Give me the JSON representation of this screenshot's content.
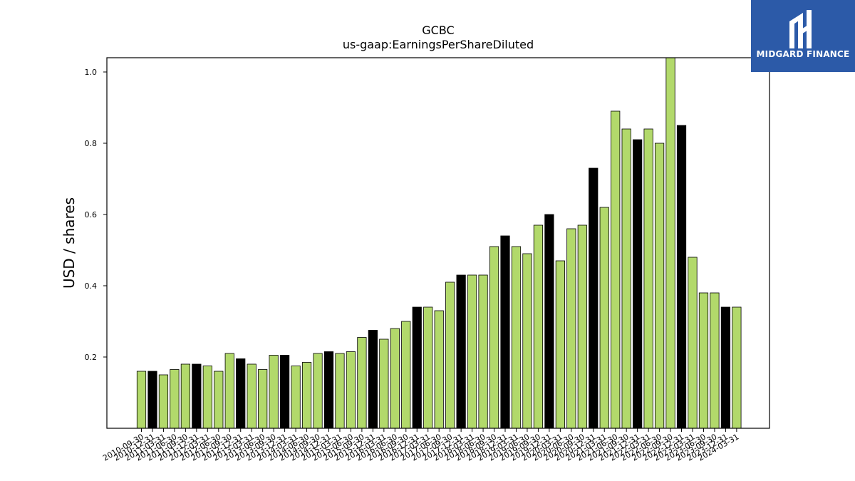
{
  "chart_data": {
    "type": "bar",
    "title": "GCBC",
    "subtitle": "us-gaap:EarningsPerShareDiluted",
    "ylabel": "USD / shares",
    "xlabel": "",
    "ylim": [
      0,
      1.04
    ],
    "yticks": [
      0.2,
      0.4,
      0.6,
      0.8,
      1.0
    ],
    "grid": false,
    "colors": {
      "quarterly": "#b2d96b",
      "annual": "#000000",
      "edge": "#000000"
    },
    "categories": [
      "2010-09-30",
      "2010-12-31",
      "2011-03-31",
      "2011-06-30",
      "2011-09-30",
      "2011-12-31",
      "2012-03-31",
      "2012-06-30",
      "2012-09-30",
      "2012-12-31",
      "2013-03-31",
      "2013-06-30",
      "2013-09-30",
      "2013-12-31",
      "2014-03-31",
      "2014-06-30",
      "2014-09-30",
      "2014-12-31",
      "2015-03-31",
      "2015-06-30",
      "2015-09-30",
      "2015-12-31",
      "2016-03-31",
      "2016-06-30",
      "2016-09-30",
      "2016-12-31",
      "2017-03-31",
      "2017-06-30",
      "2017-09-30",
      "2017-12-31",
      "2018-03-31",
      "2018-06-30",
      "2018-09-30",
      "2018-12-31",
      "2019-03-31",
      "2019-06-30",
      "2019-09-30",
      "2019-12-31",
      "2020-03-31",
      "2020-06-30",
      "2020-09-30",
      "2020-12-31",
      "2021-03-31",
      "2021-06-30",
      "2021-09-30",
      "2021-12-31",
      "2022-03-31",
      "2022-06-30",
      "2022-09-30",
      "2022-12-31",
      "2023-03-31",
      "2023-06-30",
      "2023-09-30",
      "2023-12-31",
      "2024-03-31"
    ],
    "values": [
      0.16,
      0.16,
      0.15,
      0.165,
      0.18,
      0.18,
      0.175,
      0.16,
      0.21,
      0.195,
      0.18,
      0.165,
      0.205,
      0.205,
      0.175,
      0.185,
      0.21,
      0.215,
      0.21,
      0.215,
      0.255,
      0.275,
      0.25,
      0.28,
      0.3,
      0.34,
      0.34,
      0.33,
      0.41,
      0.43,
      0.43,
      0.43,
      0.51,
      0.54,
      0.51,
      0.49,
      0.57,
      0.6,
      0.47,
      0.56,
      0.57,
      0.73,
      0.62,
      0.89,
      0.84,
      0.81,
      0.84,
      0.8,
      1.04,
      0.85,
      0.48,
      0.38,
      0.38,
      0.34,
      0.34
    ],
    "annual": [
      false,
      true,
      false,
      false,
      false,
      true,
      false,
      false,
      false,
      true,
      false,
      false,
      false,
      true,
      false,
      false,
      false,
      true,
      false,
      false,
      false,
      true,
      false,
      false,
      false,
      true,
      false,
      false,
      false,
      true,
      false,
      false,
      false,
      true,
      false,
      false,
      false,
      true,
      false,
      false,
      false,
      true,
      false,
      false,
      false,
      true,
      false,
      false,
      false,
      true,
      false,
      false,
      false,
      true,
      false
    ]
  },
  "logo": {
    "text": "MIDGARD FINANCE"
  }
}
